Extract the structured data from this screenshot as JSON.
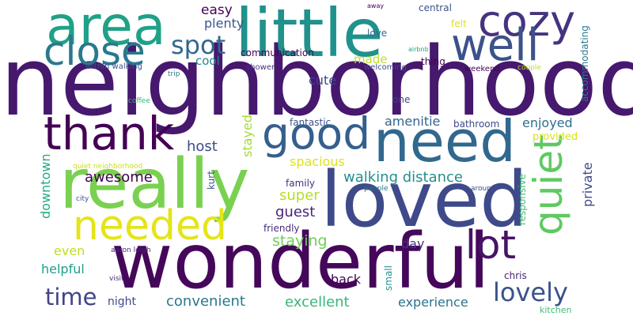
{
  "background": "#ffffff",
  "words": [
    {
      "text": "neighborhood",
      "color": "#46186e"
    },
    {
      "text": "wonderful",
      "color": "#45075a"
    },
    {
      "text": "loved",
      "color": "#3e4a89"
    },
    {
      "text": "little",
      "color": "#21918c"
    },
    {
      "text": "really",
      "color": "#7ad151"
    },
    {
      "text": "need",
      "color": "#31688e"
    },
    {
      "text": "area",
      "color": "#1fa187"
    },
    {
      "text": "good",
      "color": "#355f8d"
    },
    {
      "text": "thank",
      "color": "#440154"
    },
    {
      "text": "cozy",
      "color": "#46337f"
    },
    {
      "text": "well",
      "color": "#3b528b"
    },
    {
      "text": "needed",
      "color": "#e5e419"
    },
    {
      "text": "close",
      "color": "#2a788e"
    },
    {
      "text": "quiet",
      "color": "#5ec962"
    },
    {
      "text": "lot",
      "color": "#471365"
    },
    {
      "text": "lovely",
      "color": "#3b528b"
    },
    {
      "text": "time",
      "color": "#414487"
    },
    {
      "text": "spot",
      "color": "#31688e"
    },
    {
      "text": "awesome",
      "color": "#440154"
    },
    {
      "text": "host",
      "color": "#3e4a89"
    },
    {
      "text": "walking distance",
      "color": "#21918c"
    },
    {
      "text": "staying",
      "color": "#6ece58"
    },
    {
      "text": "super",
      "color": "#b5de2b"
    },
    {
      "text": "guest",
      "color": "#482576"
    },
    {
      "text": "convenient",
      "color": "#2a788e"
    },
    {
      "text": "excellent",
      "color": "#35b779"
    },
    {
      "text": "experience",
      "color": "#2c728e"
    },
    {
      "text": "easy",
      "color": "#440154"
    },
    {
      "text": "plenty",
      "color": "#38588c"
    },
    {
      "text": "cool",
      "color": "#25848e"
    },
    {
      "text": "cute",
      "color": "#404688"
    },
    {
      "text": "made",
      "color": "#c2df23"
    },
    {
      "text": "amenitie",
      "color": "#33638d"
    },
    {
      "text": "enjoyed",
      "color": "#2d708e"
    },
    {
      "text": "provided",
      "color": "#d8e219"
    },
    {
      "text": "private",
      "color": "#3e4a89"
    },
    {
      "text": "downtown",
      "color": "#22a884"
    },
    {
      "text": "spacious",
      "color": "#dde318"
    },
    {
      "text": "stayed",
      "color": "#a5db36"
    },
    {
      "text": "helpful",
      "color": "#1f9e89"
    },
    {
      "text": "even",
      "color": "#bddf26"
    },
    {
      "text": "day",
      "color": "#453581"
    },
    {
      "text": "back",
      "color": "#440154"
    },
    {
      "text": "night",
      "color": "#3e4989"
    },
    {
      "text": "chris",
      "color": "#482475"
    },
    {
      "text": "fantastic",
      "color": "#3b528b"
    },
    {
      "text": "bathroom",
      "color": "#3e4989"
    },
    {
      "text": "communication",
      "color": "#440154"
    },
    {
      "text": "family",
      "color": "#46327e"
    },
    {
      "text": "friendly",
      "color": "#472d7b"
    },
    {
      "text": "accommodating",
      "color": "#2a788e"
    },
    {
      "text": "responsive",
      "color": "#3fbc73"
    },
    {
      "text": "central",
      "color": "#3b528b"
    },
    {
      "text": "felt",
      "color": "#dde318"
    },
    {
      "text": "love",
      "color": "#31688e"
    },
    {
      "text": "thing",
      "color": "#440154"
    },
    {
      "text": "one",
      "color": "#414487"
    },
    {
      "text": "kurt",
      "color": "#38588c"
    },
    {
      "text": "small",
      "color": "#21918c"
    },
    {
      "text": "kitchen",
      "color": "#3fbc73"
    },
    {
      "text": "within walking",
      "color": "#3b528b"
    },
    {
      "text": "shower",
      "color": "#46337f"
    },
    {
      "text": "welcoming",
      "color": "#3e4a89"
    },
    {
      "text": "weekend",
      "color": "#440154"
    },
    {
      "text": "couple",
      "color": "#bddf26"
    },
    {
      "text": "trip",
      "color": "#2a788e"
    },
    {
      "text": "coffee",
      "color": "#35b779"
    },
    {
      "text": "quiet neighborhood",
      "color": "#c8e020"
    },
    {
      "text": "city",
      "color": "#3b528b"
    },
    {
      "text": "people",
      "color": "#2c728e"
    },
    {
      "text": "around",
      "color": "#3e4a89"
    },
    {
      "text": "aaron leigh",
      "color": "#482878"
    },
    {
      "text": "visit",
      "color": "#472c7a"
    },
    {
      "text": "airbnb",
      "color": "#1fa187"
    },
    {
      "text": "away",
      "color": "#440154"
    }
  ]
}
